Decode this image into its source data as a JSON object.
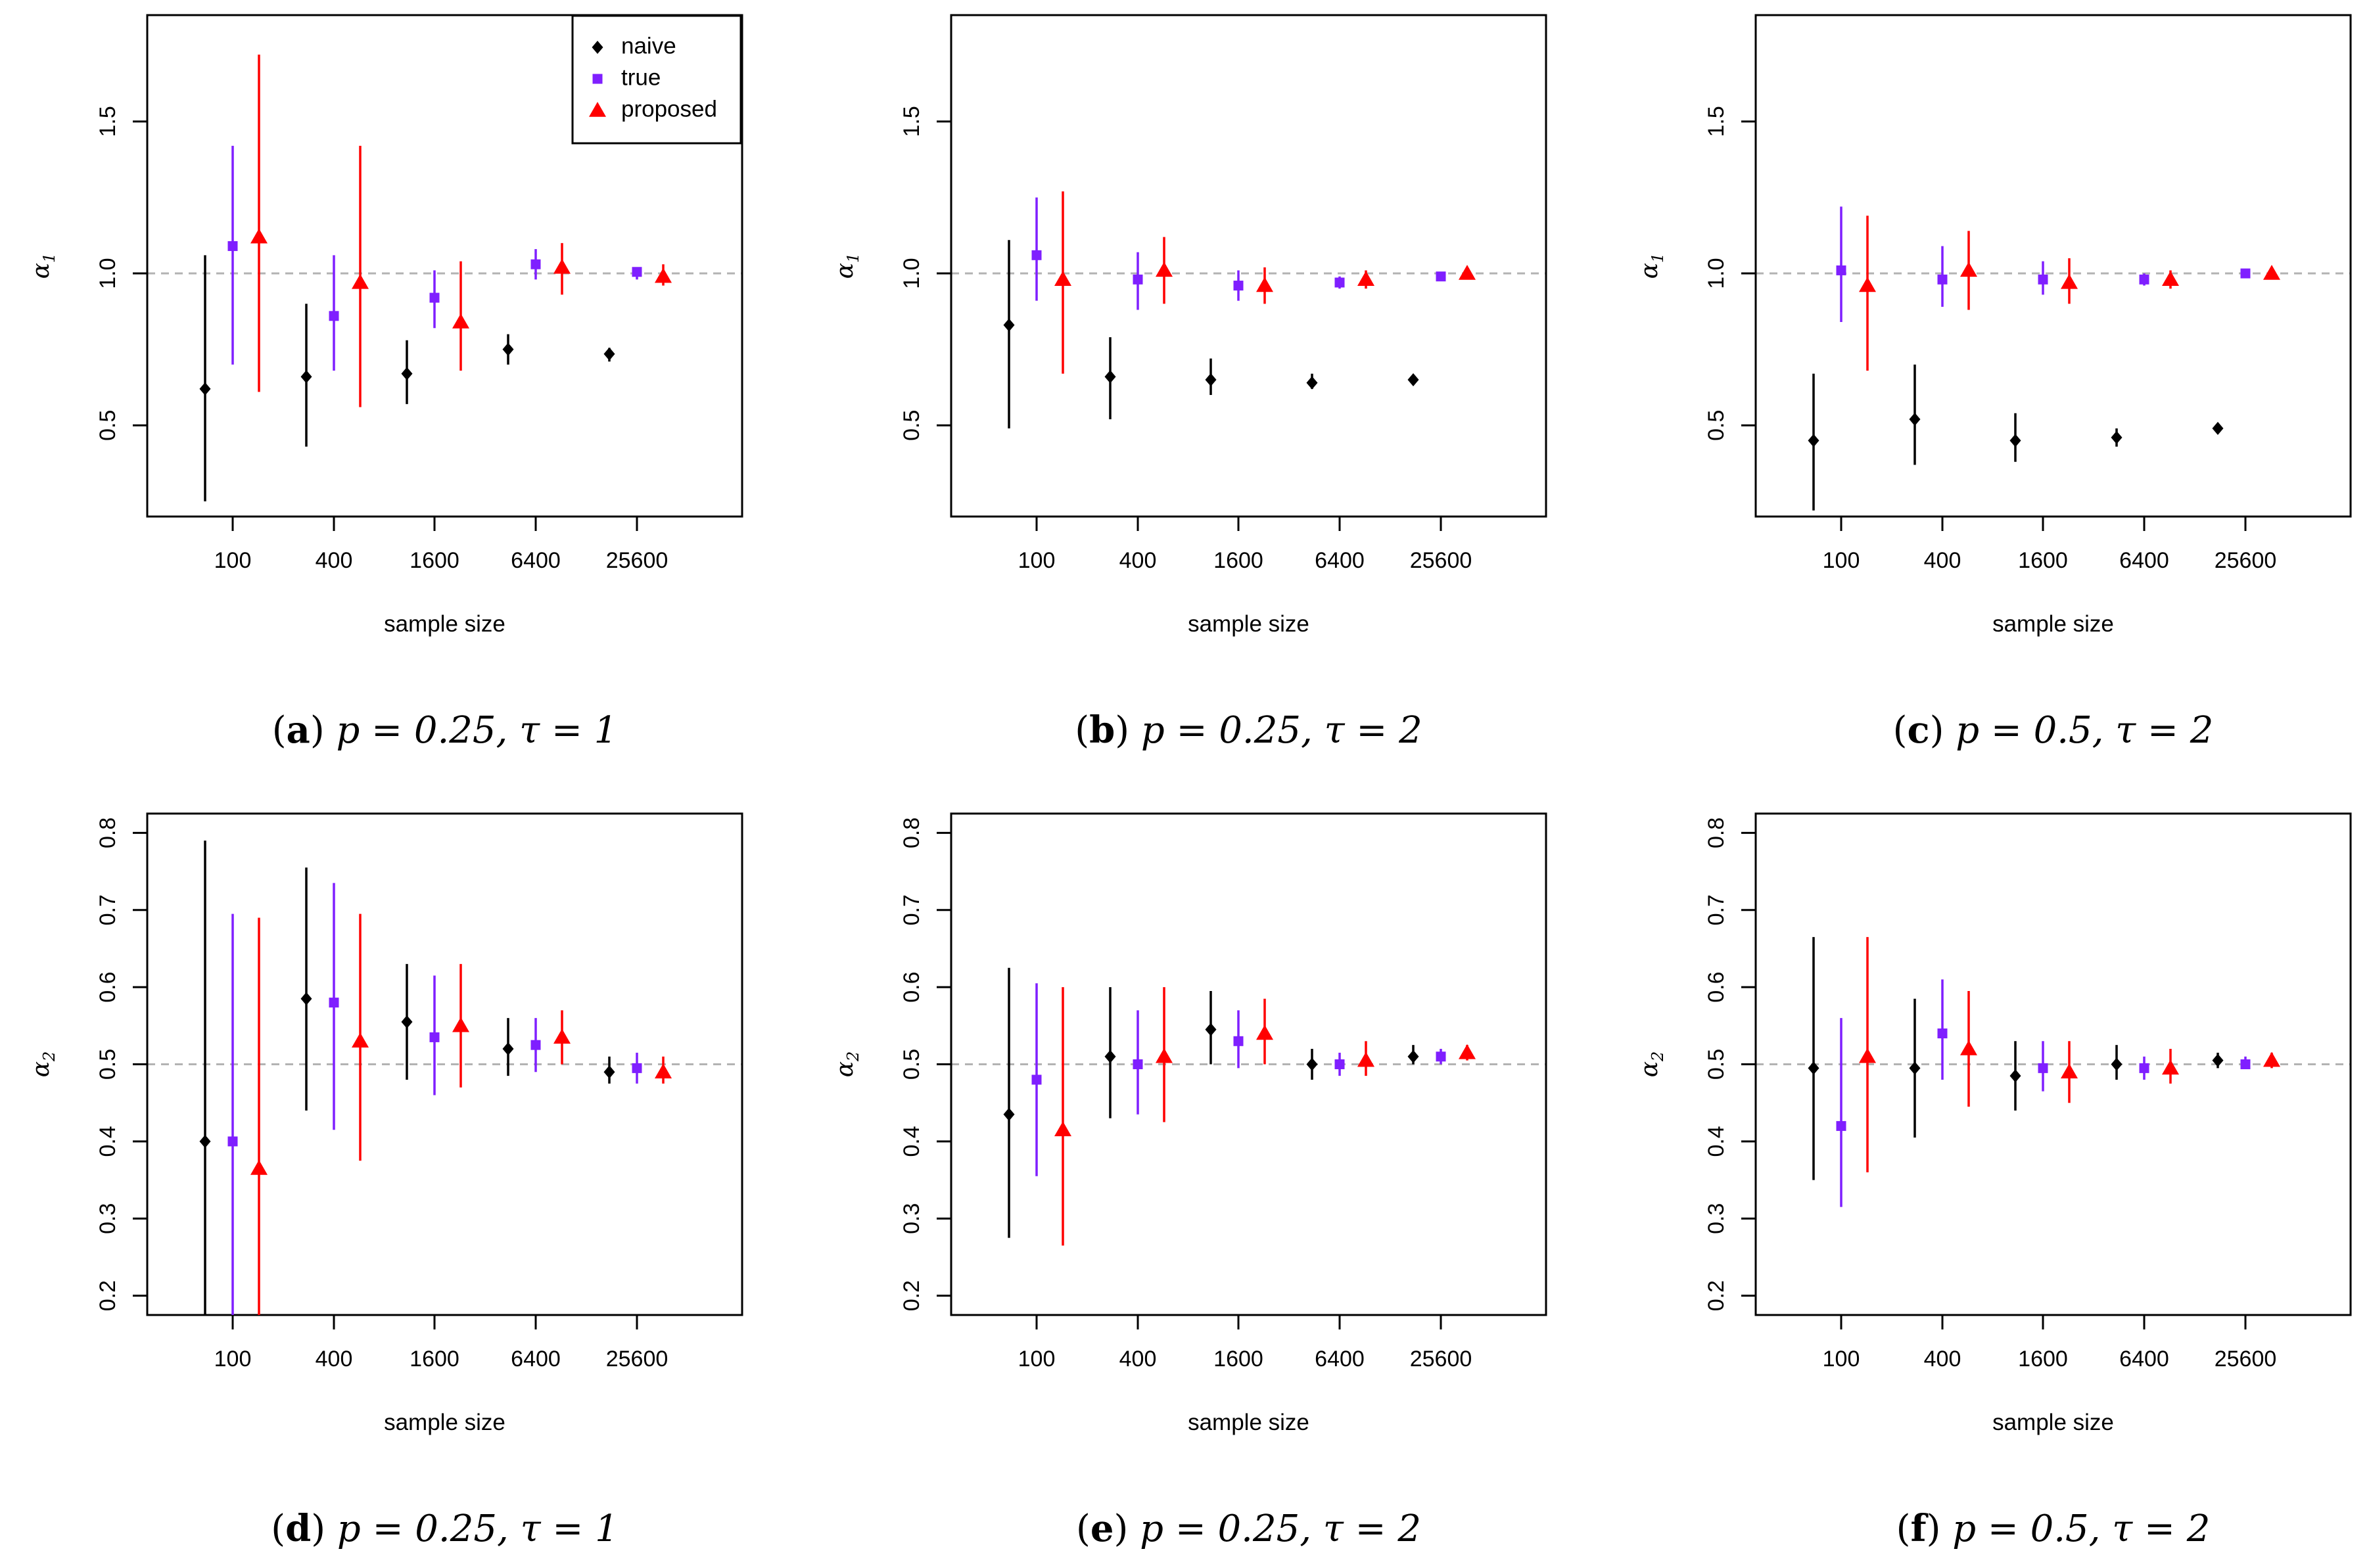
{
  "figure": {
    "legend": [
      {
        "label": "naive",
        "color": "#000000",
        "marker": "diamond"
      },
      {
        "label": "true",
        "color": "#7f1fff",
        "marker": "square"
      },
      {
        "label": "proposed",
        "color": "#ff0000",
        "marker": "triangle"
      }
    ],
    "reference_line_color": "#b3b3b3"
  },
  "chart_data": [
    {
      "type": "scatter",
      "panel": "a",
      "caption": {
        "letter": "a",
        "p": "p = 0.25,",
        "tau": "τ = 1"
      },
      "xlabel": "sample size",
      "ylabel": {
        "symbol": "α",
        "sub": "1"
      },
      "categories": [
        "100",
        "400",
        "1600",
        "6400",
        "25600"
      ],
      "ylim": [
        0.2,
        1.85
      ],
      "yticks": [
        "0.5",
        "1.0",
        "1.5"
      ],
      "reference_line": 1.0,
      "show_legend": true,
      "series": [
        {
          "name": "naive",
          "values": [
            0.62,
            0.66,
            0.67,
            0.75,
            0.735
          ],
          "lower": [
            0.25,
            0.43,
            0.57,
            0.7,
            0.71
          ],
          "upper": [
            1.06,
            0.9,
            0.78,
            0.8,
            0.755
          ]
        },
        {
          "name": "true",
          "values": [
            1.09,
            0.86,
            0.92,
            1.03,
            1.005
          ],
          "lower": [
            0.7,
            0.68,
            0.82,
            0.98,
            0.98
          ],
          "upper": [
            1.42,
            1.06,
            1.01,
            1.08,
            1.02
          ]
        },
        {
          "name": "proposed",
          "values": [
            1.12,
            0.97,
            0.84,
            1.02,
            0.99
          ],
          "lower": [
            0.61,
            0.56,
            0.68,
            0.93,
            0.96
          ],
          "upper": [
            1.72,
            1.42,
            1.04,
            1.1,
            1.03
          ]
        }
      ]
    },
    {
      "type": "scatter",
      "panel": "b",
      "caption": {
        "letter": "b",
        "p": "p = 0.25,",
        "tau": "τ = 2"
      },
      "xlabel": "sample size",
      "ylabel": {
        "symbol": "α",
        "sub": "1"
      },
      "categories": [
        "100",
        "400",
        "1600",
        "6400",
        "25600"
      ],
      "ylim": [
        0.2,
        1.85
      ],
      "yticks": [
        "0.5",
        "1.0",
        "1.5"
      ],
      "reference_line": 1.0,
      "show_legend": false,
      "series": [
        {
          "name": "naive",
          "values": [
            0.83,
            0.66,
            0.65,
            0.64,
            0.65
          ],
          "lower": [
            0.49,
            0.52,
            0.6,
            0.62,
            0.64
          ],
          "upper": [
            1.11,
            0.79,
            0.72,
            0.67,
            0.66
          ]
        },
        {
          "name": "true",
          "values": [
            1.06,
            0.98,
            0.96,
            0.97,
            0.99
          ],
          "lower": [
            0.91,
            0.88,
            0.91,
            0.95,
            0.98
          ],
          "upper": [
            1.25,
            1.07,
            1.01,
            0.99,
            1.0
          ]
        },
        {
          "name": "proposed",
          "values": [
            0.98,
            1.01,
            0.96,
            0.98,
            1.0
          ],
          "lower": [
            0.67,
            0.9,
            0.9,
            0.95,
            0.99
          ],
          "upper": [
            1.27,
            1.12,
            1.02,
            1.01,
            1.01
          ]
        }
      ]
    },
    {
      "type": "scatter",
      "panel": "c",
      "caption": {
        "letter": "c",
        "p": "p = 0.5,",
        "tau": "τ = 2"
      },
      "xlabel": "sample size",
      "ylabel": {
        "symbol": "α",
        "sub": "1"
      },
      "categories": [
        "100",
        "400",
        "1600",
        "6400",
        "25600"
      ],
      "ylim": [
        0.2,
        1.85
      ],
      "yticks": [
        "0.5",
        "1.0",
        "1.5"
      ],
      "reference_line": 1.0,
      "show_legend": false,
      "series": [
        {
          "name": "naive",
          "values": [
            0.45,
            0.52,
            0.45,
            0.46,
            0.49
          ],
          "lower": [
            0.22,
            0.37,
            0.38,
            0.43,
            0.48
          ],
          "upper": [
            0.67,
            0.7,
            0.54,
            0.49,
            0.5
          ]
        },
        {
          "name": "true",
          "values": [
            1.01,
            0.98,
            0.98,
            0.98,
            1.0
          ],
          "lower": [
            0.84,
            0.89,
            0.93,
            0.96,
            0.99
          ],
          "upper": [
            1.22,
            1.09,
            1.04,
            1.0,
            1.01
          ]
        },
        {
          "name": "proposed",
          "values": [
            0.96,
            1.01,
            0.97,
            0.98,
            1.0
          ],
          "lower": [
            0.68,
            0.88,
            0.9,
            0.95,
            0.99
          ],
          "upper": [
            1.19,
            1.14,
            1.05,
            1.01,
            1.01
          ]
        }
      ]
    },
    {
      "type": "scatter",
      "panel": "d",
      "caption": {
        "letter": "d",
        "p": "p = 0.25,",
        "tau": "τ = 1"
      },
      "xlabel": "sample size",
      "ylabel": {
        "symbol": "α",
        "sub": "2"
      },
      "categories": [
        "100",
        "400",
        "1600",
        "6400",
        "25600"
      ],
      "ylim": [
        0.175,
        0.825
      ],
      "yticks": [
        "0.2",
        "0.3",
        "0.4",
        "0.5",
        "0.6",
        "0.7",
        "0.8"
      ],
      "reference_line": 0.5,
      "show_legend": false,
      "series": [
        {
          "name": "naive",
          "values": [
            0.4,
            0.585,
            0.555,
            0.52,
            0.49
          ],
          "lower": [
            0.175,
            0.44,
            0.48,
            0.485,
            0.475
          ],
          "upper": [
            0.79,
            0.755,
            0.63,
            0.56,
            0.51
          ]
        },
        {
          "name": "true",
          "values": [
            0.4,
            0.58,
            0.535,
            0.525,
            0.495
          ],
          "lower": [
            0.175,
            0.415,
            0.46,
            0.49,
            0.475
          ],
          "upper": [
            0.695,
            0.735,
            0.615,
            0.56,
            0.515
          ]
        },
        {
          "name": "proposed",
          "values": [
            0.365,
            0.53,
            0.55,
            0.535,
            0.49
          ],
          "lower": [
            0.175,
            0.375,
            0.47,
            0.5,
            0.475
          ],
          "upper": [
            0.69,
            0.695,
            0.63,
            0.57,
            0.51
          ]
        }
      ]
    },
    {
      "type": "scatter",
      "panel": "e",
      "caption": {
        "letter": "e",
        "p": "p = 0.25,",
        "tau": "τ = 2"
      },
      "xlabel": "sample size",
      "ylabel": {
        "symbol": "α",
        "sub": "2"
      },
      "categories": [
        "100",
        "400",
        "1600",
        "6400",
        "25600"
      ],
      "ylim": [
        0.175,
        0.825
      ],
      "yticks": [
        "0.2",
        "0.3",
        "0.4",
        "0.5",
        "0.6",
        "0.7",
        "0.8"
      ],
      "reference_line": 0.5,
      "show_legend": false,
      "series": [
        {
          "name": "naive",
          "values": [
            0.435,
            0.51,
            0.545,
            0.5,
            0.51
          ],
          "lower": [
            0.275,
            0.43,
            0.5,
            0.48,
            0.5
          ],
          "upper": [
            0.625,
            0.6,
            0.595,
            0.52,
            0.525
          ]
        },
        {
          "name": "true",
          "values": [
            0.48,
            0.5,
            0.53,
            0.5,
            0.51
          ],
          "lower": [
            0.355,
            0.435,
            0.495,
            0.485,
            0.5
          ],
          "upper": [
            0.605,
            0.57,
            0.57,
            0.515,
            0.52
          ]
        },
        {
          "name": "proposed",
          "values": [
            0.415,
            0.51,
            0.54,
            0.505,
            0.515
          ],
          "lower": [
            0.265,
            0.425,
            0.5,
            0.485,
            0.505
          ],
          "upper": [
            0.6,
            0.6,
            0.585,
            0.53,
            0.525
          ]
        }
      ]
    },
    {
      "type": "scatter",
      "panel": "f",
      "caption": {
        "letter": "f",
        "p": "p = 0.5,",
        "tau": "τ = 2"
      },
      "xlabel": "sample size",
      "ylabel": {
        "symbol": "α",
        "sub": "2"
      },
      "categories": [
        "100",
        "400",
        "1600",
        "6400",
        "25600"
      ],
      "ylim": [
        0.175,
        0.825
      ],
      "yticks": [
        "0.2",
        "0.3",
        "0.4",
        "0.5",
        "0.6",
        "0.7",
        "0.8"
      ],
      "reference_line": 0.5,
      "show_legend": false,
      "series": [
        {
          "name": "naive",
          "values": [
            0.495,
            0.495,
            0.485,
            0.5,
            0.505
          ],
          "lower": [
            0.35,
            0.405,
            0.44,
            0.48,
            0.495
          ],
          "upper": [
            0.665,
            0.585,
            0.53,
            0.525,
            0.515
          ]
        },
        {
          "name": "true",
          "values": [
            0.42,
            0.54,
            0.495,
            0.495,
            0.5
          ],
          "lower": [
            0.315,
            0.48,
            0.465,
            0.48,
            0.495
          ],
          "upper": [
            0.56,
            0.61,
            0.53,
            0.51,
            0.51
          ]
        },
        {
          "name": "proposed",
          "values": [
            0.51,
            0.52,
            0.49,
            0.495,
            0.505
          ],
          "lower": [
            0.36,
            0.445,
            0.45,
            0.475,
            0.495
          ],
          "upper": [
            0.665,
            0.595,
            0.53,
            0.52,
            0.515
          ]
        }
      ]
    }
  ]
}
